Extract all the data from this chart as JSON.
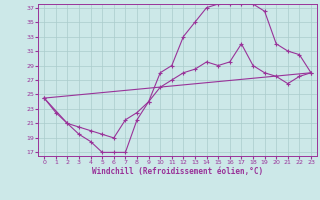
{
  "xlabel": "Windchill (Refroidissement éolien,°C)",
  "bg_color": "#cce8e8",
  "grid_color": "#aacccc",
  "line_color": "#993399",
  "xlim": [
    -0.5,
    23.5
  ],
  "ylim": [
    16.5,
    37.5
  ],
  "yticks": [
    17,
    19,
    21,
    23,
    25,
    27,
    29,
    31,
    33,
    35,
    37
  ],
  "xticks": [
    0,
    1,
    2,
    3,
    4,
    5,
    6,
    7,
    8,
    9,
    10,
    11,
    12,
    13,
    14,
    15,
    16,
    17,
    18,
    19,
    20,
    21,
    22,
    23
  ],
  "line1_x": [
    0,
    1,
    2,
    3,
    4,
    5,
    6,
    7,
    8,
    9,
    10,
    11,
    12,
    13,
    14,
    15,
    16,
    17,
    18,
    19,
    20,
    21,
    22,
    23
  ],
  "line1_y": [
    24.5,
    22.5,
    21.0,
    19.5,
    18.5,
    17.0,
    17.0,
    17.0,
    21.5,
    24.0,
    28.0,
    29.0,
    33.0,
    35.0,
    37.0,
    37.5,
    37.5,
    37.5,
    37.5,
    36.5,
    32.0,
    31.0,
    30.5,
    28.0
  ],
  "line2_x": [
    0,
    2,
    3,
    4,
    5,
    6,
    7,
    8,
    9,
    10,
    11,
    12,
    13,
    14,
    15,
    16,
    17,
    18,
    19,
    20,
    21,
    22,
    23
  ],
  "line2_y": [
    24.5,
    21.0,
    20.5,
    20.0,
    19.5,
    19.0,
    21.5,
    22.5,
    24.0,
    26.0,
    27.0,
    28.0,
    28.5,
    29.5,
    29.0,
    29.5,
    32.0,
    29.0,
    28.0,
    27.5,
    26.5,
    27.5,
    28.0
  ],
  "line3_x": [
    0,
    23
  ],
  "line3_y": [
    24.5,
    28.0
  ]
}
